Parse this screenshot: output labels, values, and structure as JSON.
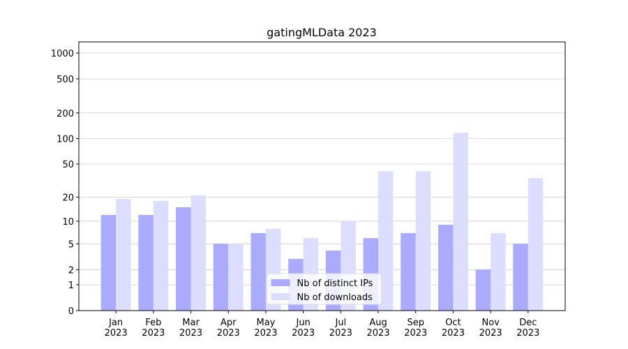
{
  "chart_data": {
    "type": "bar",
    "title": "gatingMLData 2023",
    "categories": [
      "Jan\n2023",
      "Feb\n2023",
      "Mar\n2023",
      "Apr\n2023",
      "May\n2023",
      "Jun\n2023",
      "Jul\n2023",
      "Aug\n2023",
      "Sep\n2023",
      "Oct\n2023",
      "Nov\n2023",
      "Dec\n2023"
    ],
    "series": [
      {
        "name": "Nb of distinct IPs",
        "color": "#aaaaff",
        "values": [
          12,
          12,
          15,
          5,
          7,
          3,
          4,
          6,
          7,
          9,
          2,
          5
        ]
      },
      {
        "name": "Nb of downloads",
        "color": "#ddddff",
        "values": [
          19,
          18,
          21,
          5,
          8,
          6,
          10,
          41,
          41,
          117,
          7,
          34
        ]
      }
    ],
    "yscale": "log1p",
    "ylim": [
      0,
      1350
    ],
    "yticks": [
      0,
      1,
      2,
      5,
      10,
      20,
      50,
      100,
      200,
      500,
      1000
    ],
    "grid": true,
    "legend": "lower center"
  }
}
